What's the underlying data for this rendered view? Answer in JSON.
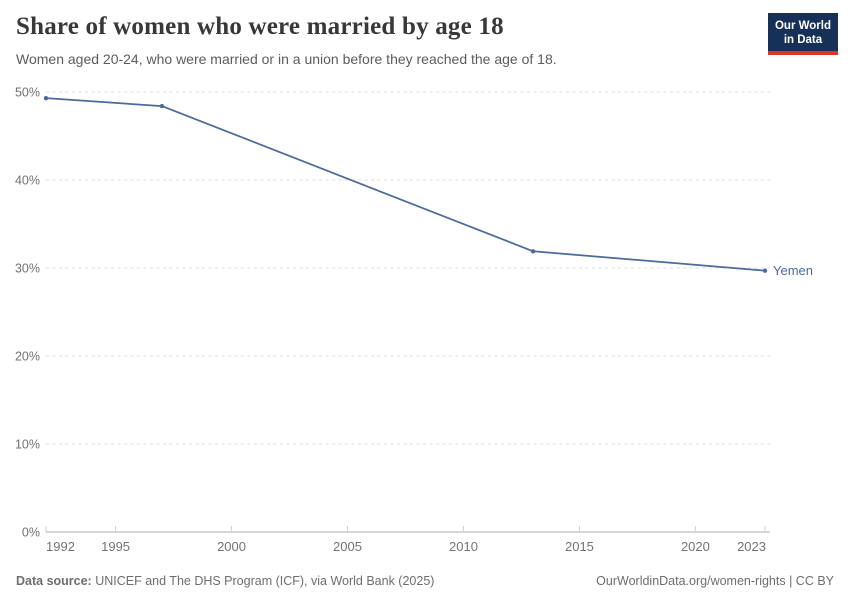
{
  "header": {
    "title": "Share of women who were married by age 18",
    "subtitle": "Women aged 20-24, who were married or in a union before they reached the age of 18."
  },
  "logo": {
    "line1": "Our World",
    "line2": "in Data"
  },
  "chart_data": {
    "type": "line",
    "title": "Share of women who were married by age 18",
    "xlabel": "",
    "ylabel": "",
    "xlim": [
      1992,
      2023
    ],
    "ylim": [
      0,
      50
    ],
    "x_ticks": [
      1992,
      1995,
      2000,
      2005,
      2010,
      2015,
      2020,
      2023
    ],
    "y_ticks": [
      0,
      10,
      20,
      30,
      40,
      50
    ],
    "y_tick_suffix": "%",
    "grid": "horizontal-dashed",
    "legend": "end-of-line-label",
    "series": [
      {
        "name": "Yemen",
        "color": "#4C6A9C",
        "points": [
          {
            "x": 1992,
            "y": 49.3
          },
          {
            "x": 1997,
            "y": 48.4
          },
          {
            "x": 2013,
            "y": 31.9
          },
          {
            "x": 2023,
            "y": 29.7
          }
        ]
      }
    ]
  },
  "footer": {
    "source_label": "Data source:",
    "source_text": " UNICEF and The DHS Program (ICF), via World Bank (2025)",
    "credit": "OurWorldinData.org/women-rights | CC BY"
  },
  "colors": {
    "line": "#4C6A9C",
    "entity_label": "#4C6A9C",
    "grid": "#dcdcdc",
    "axis": "#adadad",
    "x_tick_mark": "#cfcfcf",
    "tick_label": "#737373",
    "logo_bg": "#163058",
    "logo_stripe": "#dc3529"
  }
}
